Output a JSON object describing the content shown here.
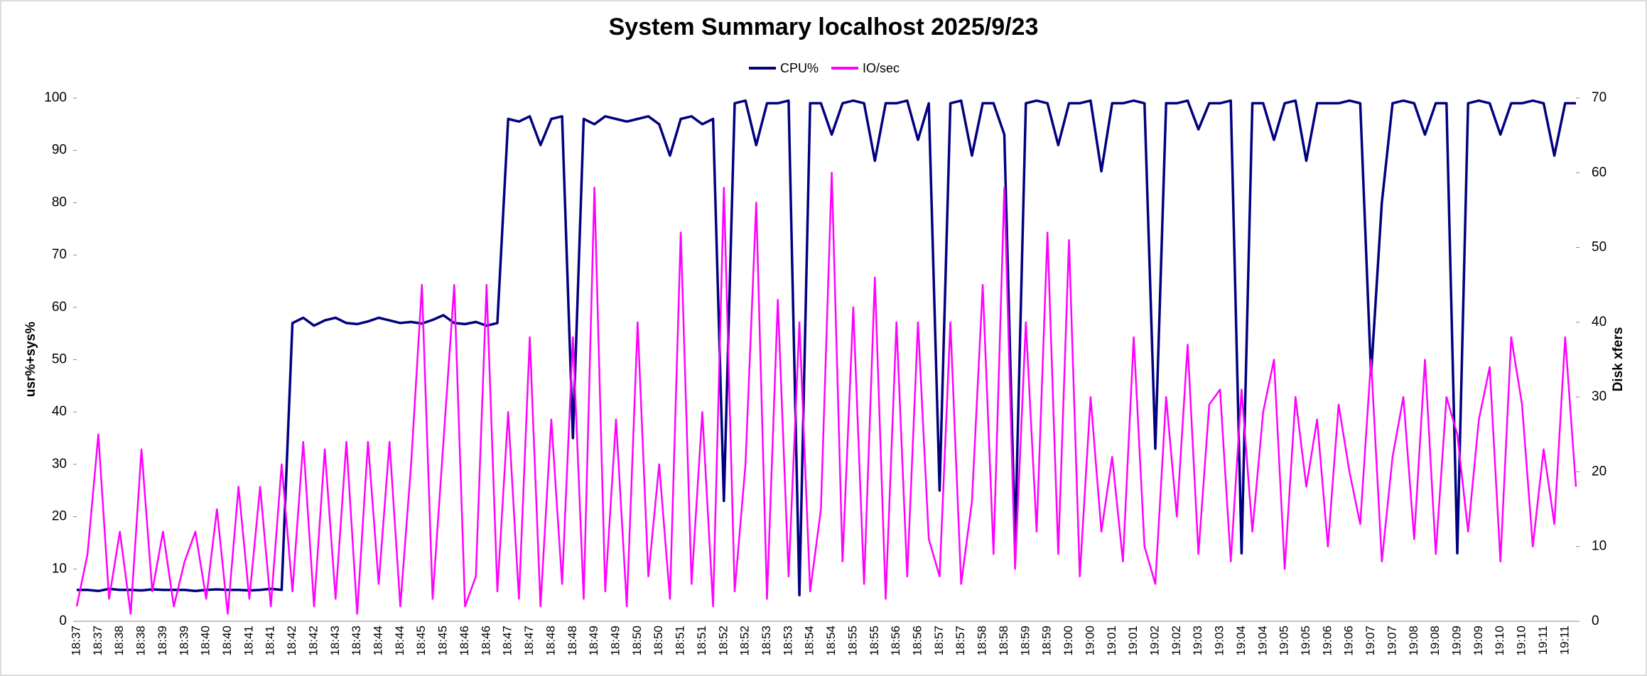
{
  "chart_data": {
    "type": "line",
    "title": "System Summary localhost  2025/9/23",
    "y_label": "usr%+sys%",
    "y2_label": "Disk xfers",
    "categories": [
      "18:37",
      null,
      "18:37",
      null,
      "18:38",
      null,
      "18:38",
      null,
      "18:39",
      null,
      "18:39",
      null,
      "18:40",
      null,
      "18:40",
      null,
      "18:41",
      null,
      "18:41",
      null,
      "18:42",
      null,
      "18:42",
      null,
      "18:43",
      null,
      "18:43",
      null,
      "18:44",
      null,
      "18:44",
      null,
      "18:45",
      null,
      "18:45",
      null,
      "18:46",
      null,
      "18:46",
      null,
      "18:47",
      null,
      "18:47",
      null,
      "18:48",
      null,
      "18:48",
      null,
      "18:49",
      null,
      "18:49",
      null,
      "18:50",
      null,
      "18:50",
      null,
      "18:51",
      null,
      "18:51",
      null,
      "18:52",
      null,
      "18:52",
      null,
      "18:53",
      null,
      "18:53",
      null,
      "18:54",
      null,
      "18:54",
      null,
      "18:55",
      null,
      "18:55",
      null,
      "18:56",
      null,
      "18:56",
      null,
      "18:57",
      null,
      "18:57",
      null,
      "18:58",
      null,
      "18:58",
      null,
      "18:59",
      null,
      "18:59",
      null,
      "19:00",
      null,
      "19:00",
      null,
      "19:01",
      null,
      "19:01",
      null,
      "19:02",
      null,
      "19:02",
      null,
      "19:03",
      null,
      "19:03",
      null,
      "19:04",
      null,
      "19:04",
      null,
      "19:05",
      null,
      "19:05",
      null,
      "19:06",
      null,
      "19:06",
      null,
      "19:07",
      null,
      "19:07",
      null,
      "19:08",
      null,
      "19:08",
      null,
      "19:09",
      null,
      "19:09",
      null,
      "19:10",
      null,
      "19:10",
      null,
      "19:11",
      null,
      "19:11",
      null
    ],
    "series": [
      {
        "name": "CPU%",
        "color": "#000080",
        "values": [
          6,
          6,
          5.8,
          6.2,
          6,
          6,
          5.9,
          6.1,
          6,
          6,
          6,
          5.8,
          6,
          6.1,
          6,
          6,
          5.9,
          6,
          6.2,
          6,
          57,
          58,
          56.5,
          57.5,
          58,
          57,
          56.8,
          57.3,
          58,
          57.5,
          57,
          57.2,
          56.9,
          57.6,
          58.5,
          57,
          56.8,
          57.2,
          56.5,
          57,
          96,
          95.5,
          96.5,
          91,
          96,
          96.5,
          35,
          96,
          95,
          96.5,
          96,
          95.5,
          96,
          96.5,
          95,
          89,
          96,
          96.5,
          95,
          96,
          23,
          99,
          99.5,
          91,
          99,
          99,
          99.5,
          5,
          99,
          99,
          93,
          99,
          99.5,
          99,
          88,
          99,
          99,
          99.5,
          92,
          99,
          25,
          99,
          99.5,
          89,
          99,
          99,
          93,
          15,
          99,
          99.5,
          99,
          91,
          99,
          99,
          99.5,
          86,
          99,
          99,
          99.5,
          99,
          33,
          99,
          99,
          99.5,
          94,
          99,
          99,
          99.5,
          13,
          99,
          99,
          92,
          99,
          99.5,
          88,
          99,
          99,
          99,
          99.5,
          99,
          47,
          80,
          99,
          99.5,
          99,
          93,
          99,
          99,
          13,
          99,
          99.5,
          99,
          93,
          99,
          99,
          99.5,
          99,
          89,
          99,
          99
        ]
      },
      {
        "name": "IO/sec",
        "color": "#ff00ff",
        "axis": "y2",
        "values": [
          2,
          9,
          25,
          3,
          12,
          1,
          23,
          4,
          12,
          2,
          8,
          12,
          3,
          15,
          1,
          18,
          3,
          18,
          2,
          21,
          4,
          24,
          2,
          23,
          3,
          24,
          1,
          24,
          5,
          24,
          2,
          21,
          45,
          3,
          24,
          45,
          2,
          6,
          45,
          4,
          28,
          3,
          38,
          2,
          27,
          5,
          38,
          3,
          58,
          4,
          27,
          2,
          40,
          6,
          21,
          3,
          52,
          5,
          28,
          2,
          58,
          4,
          21,
          56,
          3,
          43,
          6,
          40,
          4,
          15,
          60,
          8,
          42,
          5,
          46,
          3,
          40,
          6,
          40,
          11,
          6,
          40,
          5,
          16,
          45,
          9,
          58,
          7,
          40,
          12,
          52,
          9,
          51,
          6,
          30,
          12,
          22,
          8,
          38,
          10,
          5,
          30,
          14,
          37,
          9,
          29,
          31,
          8,
          31,
          12,
          28,
          35,
          7,
          30,
          18,
          27,
          10,
          29,
          20,
          13,
          35,
          8,
          22,
          30,
          11,
          35,
          9,
          30,
          25,
          12,
          27,
          34,
          8,
          38,
          29,
          10,
          23,
          13,
          38,
          18
        ]
      }
    ],
    "ylim": [
      0,
      100
    ],
    "yticks": [
      0,
      10,
      20,
      30,
      40,
      50,
      60,
      70,
      80,
      90,
      100
    ],
    "y2lim": [
      0,
      70
    ],
    "y2ticks": [
      0,
      10,
      20,
      30,
      40,
      50,
      60,
      70
    ],
    "legend": "top"
  }
}
